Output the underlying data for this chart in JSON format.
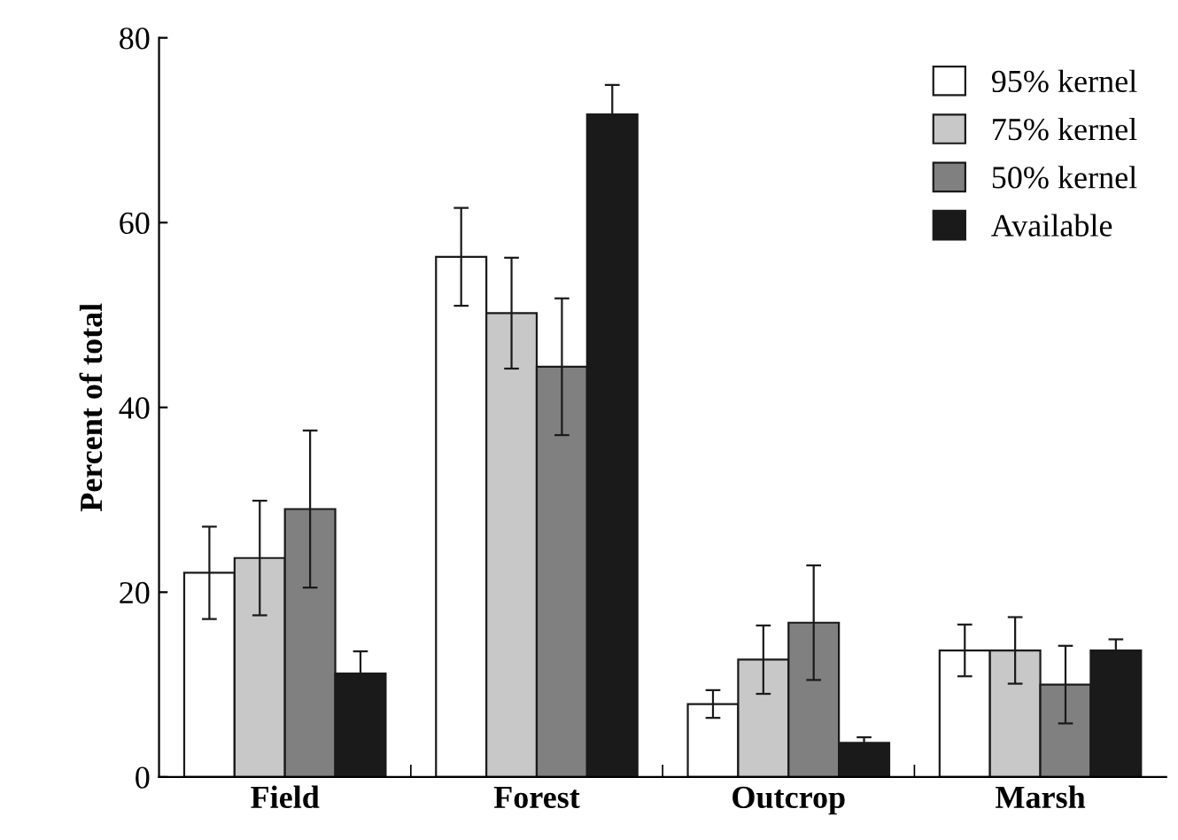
{
  "chart_data": {
    "type": "bar",
    "ylabel": "Percent of total",
    "categories": [
      "Field",
      "Forest",
      "Outcrop",
      "Marsh"
    ],
    "series": [
      {
        "name": "95% kernel",
        "color": "#ffffff",
        "values": [
          22.1,
          56.3,
          7.9,
          13.7
        ],
        "errors": [
          5,
          5.3,
          1.5,
          2.8
        ]
      },
      {
        "name": "75% kernel",
        "color": "#c8c8c8",
        "values": [
          23.7,
          50.2,
          12.7,
          13.7
        ],
        "errors": [
          6.2,
          6,
          3.7,
          3.6
        ]
      },
      {
        "name": "50% kernel",
        "color": "#808080",
        "values": [
          29.0,
          44.4,
          16.7,
          10.0
        ],
        "errors": [
          8.5,
          7.4,
          6.2,
          4.2
        ]
      },
      {
        "name": "Available",
        "color": "#1a1a1a",
        "values": [
          11.2,
          71.7,
          3.7,
          13.7
        ],
        "errors": [
          2.4,
          3.2,
          0.6,
          1.2
        ]
      }
    ],
    "ylim": [
      0,
      80
    ],
    "yticks": [
      0,
      20,
      40,
      60,
      80
    ],
    "grid": false,
    "legend": "top right"
  }
}
